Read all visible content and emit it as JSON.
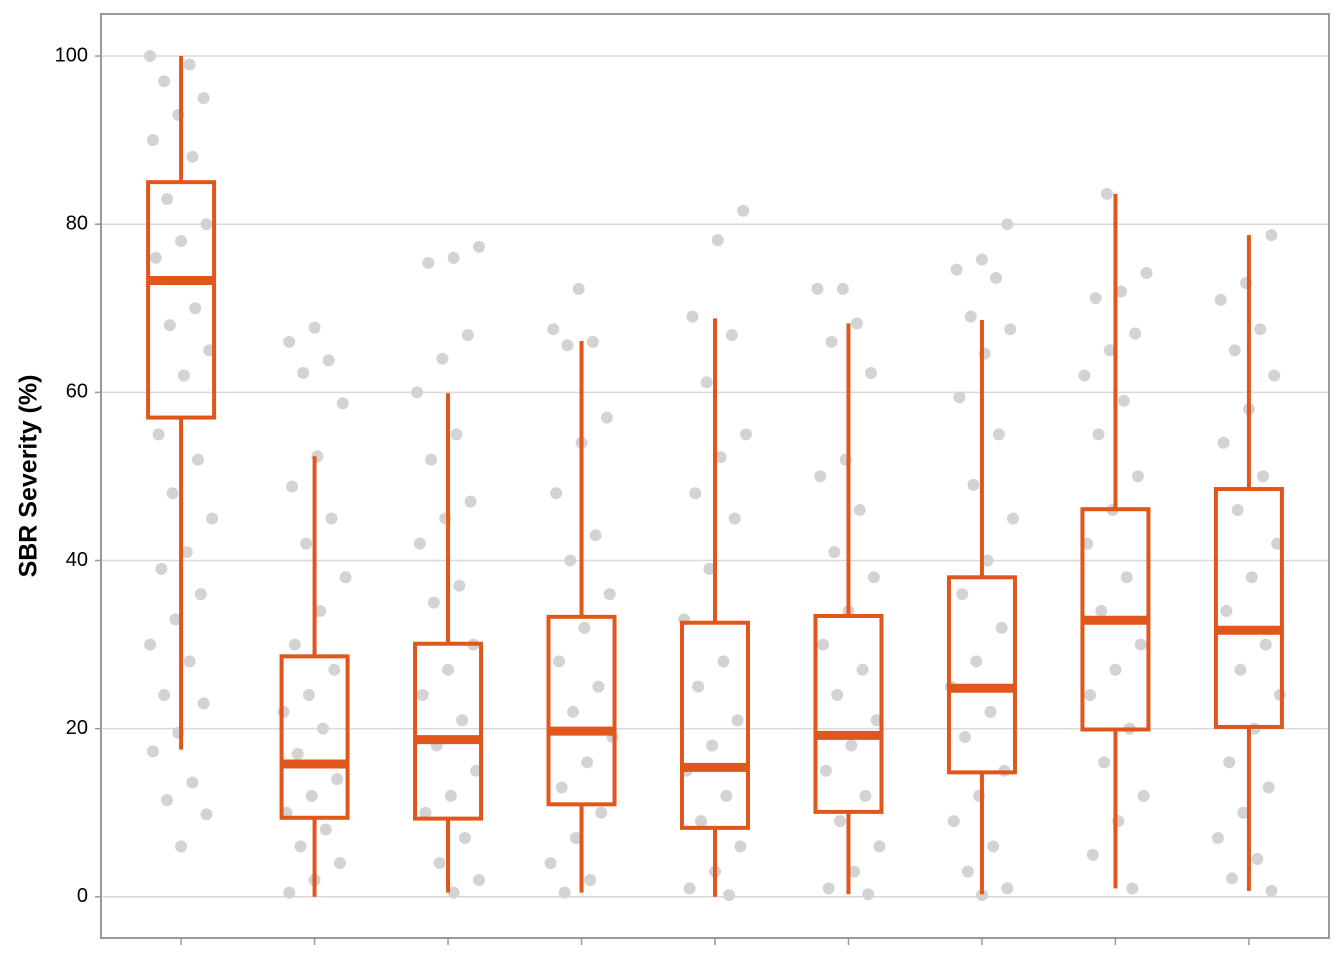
{
  "chart_data": {
    "type": "box",
    "y_label": "SBR Severity (%)",
    "categories": [
      null,
      null,
      null,
      null,
      null,
      null,
      null,
      null,
      null
    ],
    "color": "#e0561b",
    "point_color": "#d3d3d3",
    "grid": true,
    "ylim": [
      -4.9,
      105
    ],
    "yticks": [
      0,
      20,
      40,
      60,
      80,
      100
    ],
    "xlim": [
      0.4,
      9.6
    ],
    "boxes": [
      {
        "whislo": 17.5,
        "q1": 57,
        "med": 73.3,
        "q3": 85,
        "whishi": 100,
        "points": [
          100,
          99,
          97,
          95,
          93,
          90,
          88,
          83,
          80,
          78,
          76,
          70,
          68,
          65,
          62,
          55,
          52,
          48,
          45,
          41,
          39,
          36,
          33,
          30,
          28,
          24,
          23,
          19.5,
          17.3,
          13.6,
          11.5,
          9.8,
          6
        ]
      },
      {
        "whislo": 0,
        "q1": 9.4,
        "med": 15.8,
        "q3": 28.6,
        "whishi": 52.4,
        "points": [
          67.7,
          66,
          63.8,
          62.3,
          58.7,
          52.4,
          48.8,
          45,
          42,
          38,
          34,
          30,
          27,
          24,
          22,
          20,
          17,
          14,
          12,
          10,
          8,
          6,
          4,
          2,
          0.5
        ]
      },
      {
        "whislo": 0.5,
        "q1": 9.3,
        "med": 18.7,
        "q3": 30.1,
        "whishi": 59.9,
        "points": [
          77.3,
          76,
          75.4,
          66.8,
          64,
          60,
          55,
          52,
          47,
          45,
          42,
          37,
          35,
          30,
          27,
          24,
          21,
          18,
          15,
          12,
          10,
          7,
          4,
          2,
          0.5
        ]
      },
      {
        "whislo": 0.5,
        "q1": 11,
        "med": 19.7,
        "q3": 33.3,
        "whishi": 66.1,
        "points": [
          72.3,
          67.5,
          66,
          65.6,
          57,
          54,
          48,
          43,
          40,
          36,
          32,
          28,
          25,
          22,
          19,
          16,
          13,
          10,
          7,
          4,
          2,
          0.5
        ]
      },
      {
        "whislo": 0,
        "q1": 8.2,
        "med": 15.4,
        "q3": 32.6,
        "whishi": 68.8,
        "points": [
          81.6,
          78.1,
          69,
          66.8,
          61.2,
          55,
          52.3,
          48,
          45,
          39,
          33,
          28,
          25,
          21,
          18,
          15,
          12,
          9,
          6,
          3,
          1,
          0.2
        ]
      },
      {
        "whislo": 0.3,
        "q1": 10.1,
        "med": 19.2,
        "q3": 33.4,
        "whishi": 68.2,
        "points": [
          72.3,
          72.3,
          68.2,
          66,
          62.3,
          52,
          50,
          46,
          41,
          38,
          34,
          30,
          27,
          24,
          21,
          18,
          15,
          12,
          9,
          6,
          3,
          1,
          0.3
        ]
      },
      {
        "whislo": 0.3,
        "q1": 14.8,
        "med": 24.8,
        "q3": 38,
        "whishi": 68.6,
        "points": [
          80,
          75.8,
          74.6,
          73.6,
          69,
          67.5,
          64.6,
          59.4,
          55,
          49,
          45,
          40,
          36,
          32,
          28,
          25,
          22,
          19,
          15,
          12,
          9,
          6,
          3,
          1,
          0.2
        ]
      },
      {
        "whislo": 1,
        "q1": 19.9,
        "med": 32.9,
        "q3": 46.1,
        "whishi": 83.6,
        "points": [
          83.6,
          74.2,
          72,
          71.2,
          67,
          65,
          62,
          59,
          55,
          50,
          46,
          42,
          38,
          34,
          30,
          27,
          24,
          20,
          16,
          12,
          9,
          5,
          1
        ]
      },
      {
        "whislo": 0.7,
        "q1": 20.2,
        "med": 31.7,
        "q3": 48.5,
        "whishi": 78.7,
        "points": [
          78.7,
          73,
          71,
          67.5,
          65,
          62,
          58,
          54,
          50,
          46,
          42,
          38,
          34,
          30,
          27,
          24,
          20,
          16,
          13,
          10,
          7,
          4.5,
          2.2,
          0.7
        ]
      }
    ]
  }
}
